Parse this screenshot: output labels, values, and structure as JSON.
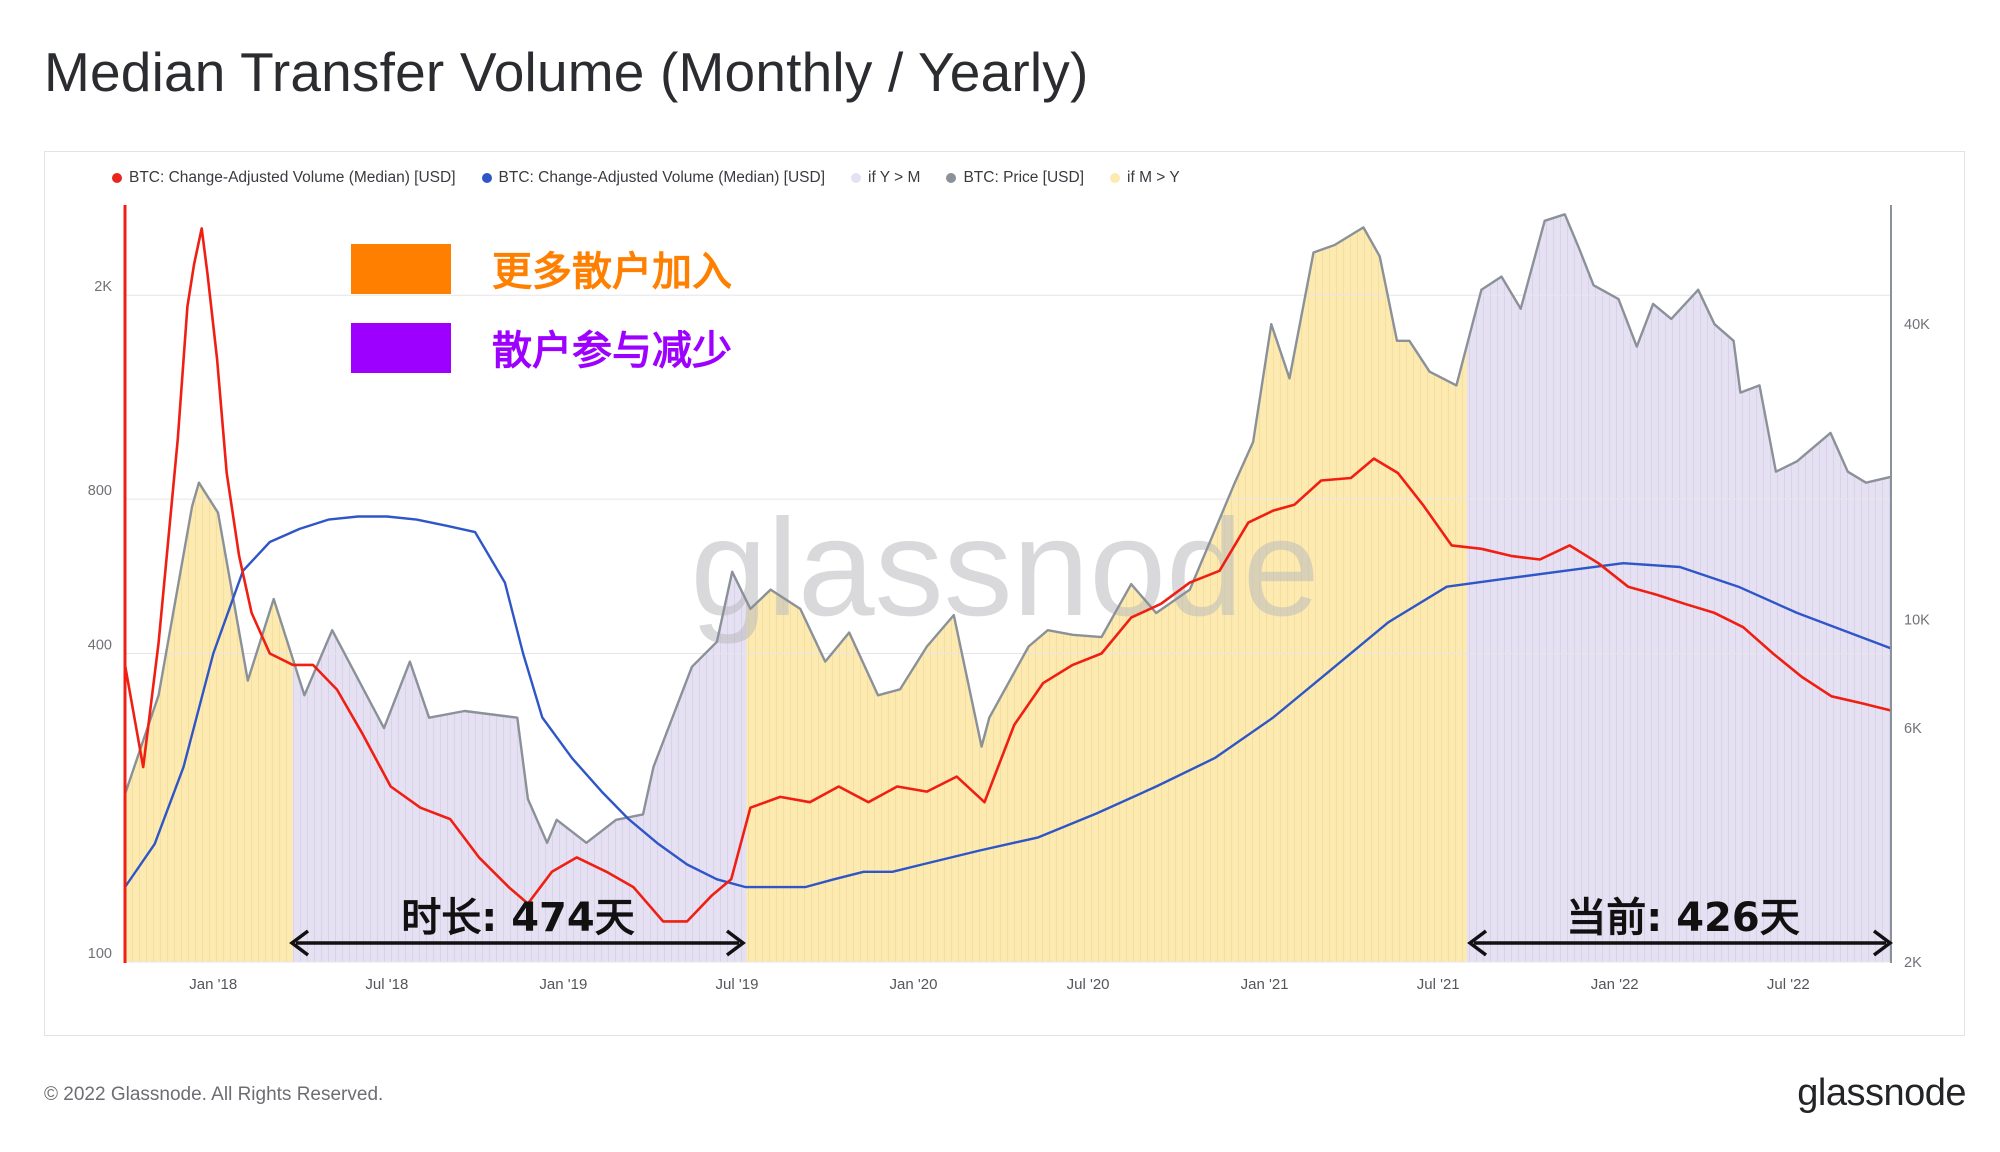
{
  "page": {
    "title": "Median Transfer Volume (Monthly / Yearly)",
    "copyright": "© 2022 Glassnode. All Rights Reserved.",
    "brand": "glassnode",
    "watermark": "glassnode"
  },
  "colors": {
    "monthly_line": "#f01f13",
    "yearly_line": "#2e56c7",
    "price_line": "#8a9198",
    "y_gt_m_fill": "#e6e1f2",
    "m_gt_y_fill": "#fdeab0",
    "retail_join": "#ff7f00",
    "retail_drop": "#9e00ff",
    "left_axis": "#f01f13",
    "right_axis": "#8a9198"
  },
  "legend": [
    {
      "label": "BTC: Change-Adjusted Volume (Median) [USD]",
      "color": "#e8261c"
    },
    {
      "label": "BTC: Change-Adjusted Volume (Median) [USD]",
      "color": "#2e56c7"
    },
    {
      "label": "if Y > M",
      "color": "#e6e1f2"
    },
    {
      "label": "BTC: Price [USD]",
      "color": "#8a9198"
    },
    {
      "label": "if M > Y",
      "color": "#fdeab0"
    }
  ],
  "annotations": {
    "retail_join": "更多散户加入",
    "retail_drop": "散户参与减少",
    "duration": "时长: 474天",
    "current": "当前: 426天"
  },
  "chart_data": {
    "type": "line",
    "scale": "log",
    "x_range": [
      "2017-10-01",
      "2022-10-15"
    ],
    "x_ticks": [
      "Jan '18",
      "Jul '18",
      "Jan '19",
      "Jul '19",
      "Jan '20",
      "Jul '20",
      "Jan '21",
      "Jul '21",
      "Jan '22",
      "Jul '22"
    ],
    "x_tick_dates": [
      "2018-01-01",
      "2018-07-01",
      "2019-01-01",
      "2019-07-01",
      "2020-01-01",
      "2020-07-01",
      "2021-01-01",
      "2021-07-01",
      "2022-01-01",
      "2022-07-01"
    ],
    "y_left": {
      "range": [
        100,
        3000
      ],
      "ticks": [
        100,
        400,
        800,
        2000
      ],
      "tick_labels": [
        "100",
        "400",
        "800",
        "2K"
      ]
    },
    "y_right": {
      "range": [
        2000,
        70000
      ],
      "ticks": [
        2000,
        6000,
        10000,
        40000
      ],
      "tick_labels": [
        "2K",
        "6K",
        "10K",
        "40K"
      ]
    },
    "regions": [
      {
        "type": "if M > Y",
        "from": "2017-10-01",
        "to": "2018-03-25"
      },
      {
        "type": "if Y > M",
        "from": "2018-03-25",
        "to": "2019-07-11"
      },
      {
        "type": "if M > Y",
        "from": "2019-07-11",
        "to": "2021-07-31"
      },
      {
        "type": "if Y > M",
        "from": "2021-07-31",
        "to": "2022-10-15"
      }
    ],
    "series": [
      {
        "name": "BTC: Change-Adjusted Volume (Median) [USD]",
        "axis": "left",
        "x": [
          "2017-10-01",
          "2017-10-20",
          "2017-11-05",
          "2017-11-25",
          "2017-12-05",
          "2017-12-12",
          "2017-12-20",
          "2017-12-26",
          "2018-01-05",
          "2018-01-15",
          "2018-01-28",
          "2018-02-10",
          "2018-03-01",
          "2018-03-25",
          "2018-04-15",
          "2018-05-10",
          "2018-06-05",
          "2018-07-05",
          "2018-08-05",
          "2018-09-05",
          "2018-10-05",
          "2018-11-05",
          "2018-11-25",
          "2018-12-20",
          "2019-01-15",
          "2019-02-15",
          "2019-03-15",
          "2019-04-15",
          "2019-05-10",
          "2019-06-05",
          "2019-06-25",
          "2019-07-15",
          "2019-08-15",
          "2019-09-15",
          "2019-10-15",
          "2019-11-15",
          "2019-12-15",
          "2020-01-15",
          "2020-02-15",
          "2020-03-15",
          "2020-04-15",
          "2020-05-15",
          "2020-06-15",
          "2020-07-15",
          "2020-08-15",
          "2020-09-15",
          "2020-10-15",
          "2020-11-15",
          "2020-12-15",
          "2021-01-10",
          "2021-02-01",
          "2021-03-01",
          "2021-04-01",
          "2021-04-25",
          "2021-05-20",
          "2021-06-15",
          "2021-07-15",
          "2021-08-15",
          "2021-09-15",
          "2021-10-15",
          "2021-11-15",
          "2021-12-15",
          "2022-01-15",
          "2022-02-15",
          "2022-03-15",
          "2022-04-15",
          "2022-05-15",
          "2022-06-15",
          "2022-07-15",
          "2022-08-15",
          "2022-09-15",
          "2022-10-15"
        ],
        "values": [
          380,
          240,
          420,
          1050,
          1900,
          2300,
          2700,
          2200,
          1500,
          900,
          620,
          480,
          400,
          380,
          380,
          340,
          280,
          220,
          200,
          190,
          160,
          140,
          130,
          150,
          160,
          150,
          140,
          120,
          120,
          135,
          145,
          200,
          210,
          205,
          220,
          205,
          220,
          215,
          230,
          205,
          290,
          350,
          380,
          400,
          470,
          500,
          550,
          580,
          720,
          760,
          780,
          870,
          880,
          960,
          900,
          780,
          650,
          640,
          620,
          610,
          650,
          600,
          540,
          520,
          500,
          480,
          450,
          400,
          360,
          330,
          320,
          310
        ]
      },
      {
        "name": "BTC: Change-Adjusted Volume (Median) [USD]",
        "axis": "left",
        "x": [
          "2017-10-01",
          "2017-11-01",
          "2017-12-01",
          "2018-01-01",
          "2018-02-01",
          "2018-03-01",
          "2018-04-01",
          "2018-05-01",
          "2018-06-01",
          "2018-07-01",
          "2018-08-01",
          "2018-09-01",
          "2018-10-01",
          "2018-11-01",
          "2018-11-20",
          "2018-12-10",
          "2019-01-10",
          "2019-02-10",
          "2019-03-10",
          "2019-04-10",
          "2019-05-10",
          "2019-06-10",
          "2019-07-10",
          "2019-08-10",
          "2019-09-10",
          "2019-10-10",
          "2019-11-10",
          "2019-12-10",
          "2020-01-10",
          "2020-03-10",
          "2020-05-10",
          "2020-07-10",
          "2020-09-10",
          "2020-11-10",
          "2021-01-10",
          "2021-03-10",
          "2021-05-10",
          "2021-07-10",
          "2021-09-10",
          "2021-11-10",
          "2022-01-10",
          "2022-03-10",
          "2022-05-10",
          "2022-07-10",
          "2022-10-15"
        ],
        "values": [
          140,
          170,
          240,
          400,
          580,
          660,
          700,
          730,
          740,
          740,
          730,
          710,
          690,
          550,
          400,
          300,
          250,
          215,
          190,
          170,
          155,
          145,
          140,
          140,
          140,
          145,
          150,
          150,
          155,
          165,
          175,
          195,
          220,
          250,
          300,
          370,
          460,
          540,
          560,
          580,
          600,
          590,
          540,
          480,
          410
        ]
      },
      {
        "name": "BTC: Price [USD]",
        "axis": "right",
        "x": [
          "2017-10-01",
          "2017-11-05",
          "2017-12-10",
          "2017-12-17",
          "2018-01-06",
          "2018-02-06",
          "2018-03-05",
          "2018-04-06",
          "2018-05-05",
          "2018-06-28",
          "2018-07-25",
          "2018-08-14",
          "2018-09-20",
          "2018-11-14",
          "2018-11-25",
          "2018-12-15",
          "2018-12-25",
          "2019-01-25",
          "2019-02-25",
          "2019-03-25",
          "2019-04-05",
          "2019-05-15",
          "2019-06-10",
          "2019-06-26",
          "2019-07-15",
          "2019-08-05",
          "2019-09-05",
          "2019-10-01",
          "2019-10-26",
          "2019-11-25",
          "2019-12-18",
          "2020-01-15",
          "2020-02-12",
          "2020-03-12",
          "2020-03-20",
          "2020-04-30",
          "2020-05-20",
          "2020-06-15",
          "2020-07-15",
          "2020-08-15",
          "2020-09-10",
          "2020-10-15",
          "2020-11-15",
          "2020-12-01",
          "2020-12-20",
          "2021-01-08",
          "2021-01-27",
          "2021-02-21",
          "2021-03-15",
          "2021-04-14",
          "2021-05-01",
          "2021-05-19",
          "2021-06-01",
          "2021-06-22",
          "2021-07-20",
          "2021-08-15",
          "2021-09-05",
          "2021-09-25",
          "2021-10-20",
          "2021-11-10",
          "2021-11-25",
          "2021-12-10",
          "2022-01-05",
          "2022-01-24",
          "2022-02-10",
          "2022-03-01",
          "2022-03-29",
          "2022-04-15",
          "2022-05-05",
          "2022-05-12",
          "2022-06-01",
          "2022-06-18",
          "2022-07-10",
          "2022-08-14",
          "2022-09-01",
          "2022-09-20",
          "2022-10-15"
        ],
        "values": [
          4400,
          7000,
          17000,
          19000,
          16500,
          7500,
          11000,
          7000,
          9500,
          6000,
          8200,
          6300,
          6500,
          6300,
          4300,
          3500,
          3900,
          3500,
          3900,
          4000,
          5000,
          8000,
          9000,
          12500,
          10500,
          11500,
          10500,
          8200,
          9400,
          7000,
          7200,
          8800,
          10200,
          5500,
          6300,
          8800,
          9500,
          9300,
          9200,
          11800,
          10300,
          11500,
          16000,
          19000,
          23000,
          40000,
          31000,
          56000,
          58000,
          63000,
          55000,
          37000,
          37000,
          32000,
          30000,
          47000,
          50000,
          43000,
          65000,
          67000,
          57000,
          48000,
          45000,
          36000,
          44000,
          41000,
          47000,
          40000,
          37000,
          29000,
          30000,
          20000,
          21000,
          24000,
          20000,
          19000,
          19500
        ]
      }
    ]
  }
}
